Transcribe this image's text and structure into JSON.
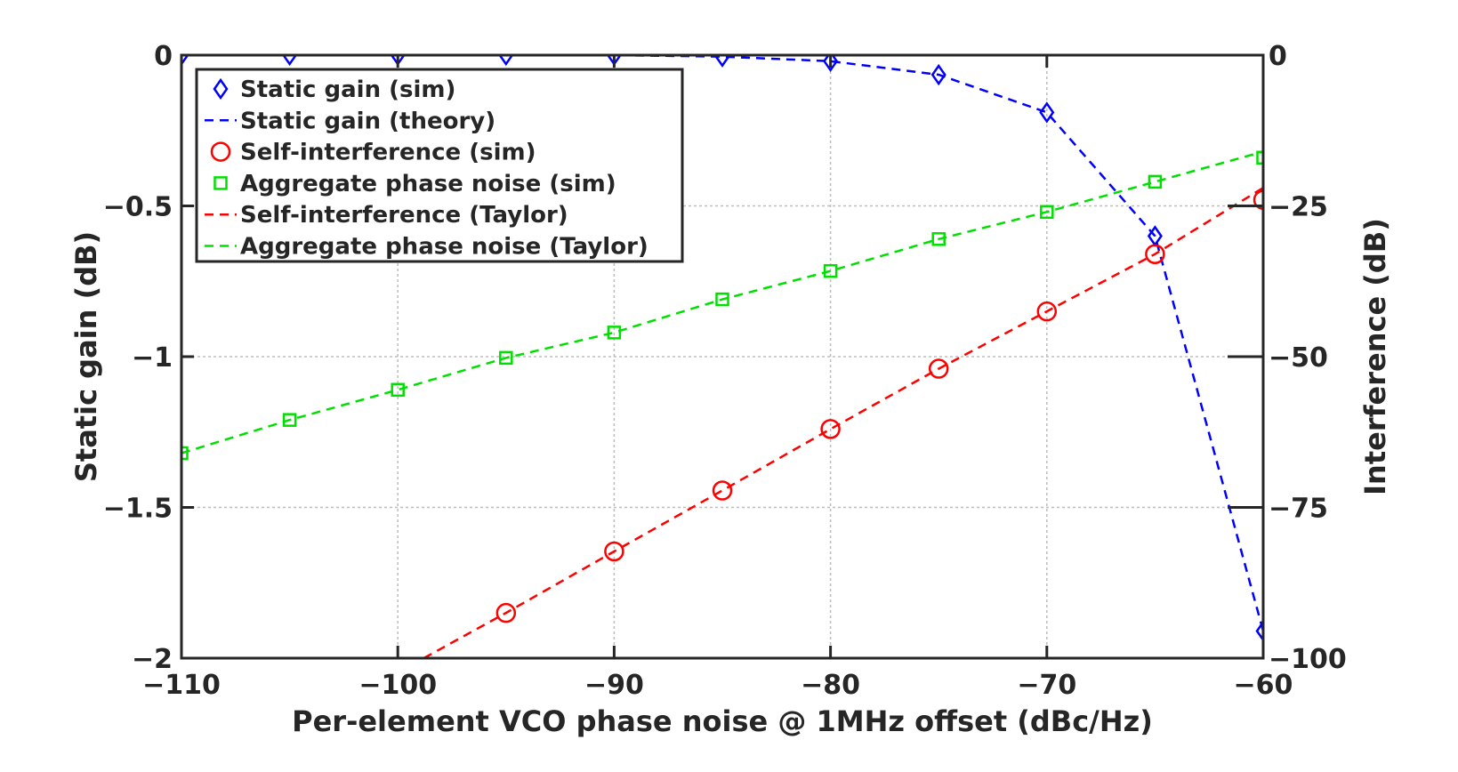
{
  "chart_data": {
    "type": "line",
    "title": "",
    "xlabel": "Per-element VCO phase noise @ 1MHz offset (dBc/Hz)",
    "ylabel_left": "Static gain (dB)",
    "ylabel_right": "Interference (dB)",
    "xlim": [
      -110,
      -60
    ],
    "ylim_left": [
      -2,
      0
    ],
    "ylim_right": [
      -100,
      0
    ],
    "xticks": [
      -110,
      -100,
      -90,
      -80,
      -70,
      -60
    ],
    "xtick_labels": [
      "−110",
      "−100",
      "−90",
      "−80",
      "−70",
      "−60"
    ],
    "yticks_left": [
      0,
      -0.5,
      -1,
      -1.5,
      -2
    ],
    "ytick_labels_left": [
      "0",
      "−0.5",
      "−1",
      "−1.5",
      "−2"
    ],
    "yticks_right": [
      0,
      -25,
      -50,
      -75,
      -100
    ],
    "ytick_labels_right": [
      "0",
      "−25",
      "−50",
      "−75",
      "−100"
    ],
    "grid": true,
    "legend_position": "top-left",
    "series": [
      {
        "name": "Static gain (sim)",
        "axis": "left",
        "style": "marker",
        "marker": "diamond",
        "color": "#0000ff",
        "x": [
          -110,
          -105,
          -100,
          -95,
          -90,
          -85,
          -80,
          -75,
          -70,
          -65,
          -60
        ],
        "y": [
          0,
          0,
          0,
          0,
          0,
          -0.005,
          -0.02,
          -0.065,
          -0.19,
          -0.6,
          -1.91
        ]
      },
      {
        "name": "Static gain (theory)",
        "axis": "left",
        "style": "dashed",
        "color": "#0000ff",
        "x": [
          -110,
          -105,
          -100,
          -95,
          -90,
          -85,
          -80,
          -75,
          -70,
          -65,
          -60
        ],
        "y": [
          0,
          0,
          0,
          0,
          0,
          -0.005,
          -0.02,
          -0.065,
          -0.19,
          -0.6,
          -1.91
        ]
      },
      {
        "name": "Self-interference (sim)",
        "axis": "right",
        "style": "marker",
        "marker": "circle",
        "color": "#ff0000",
        "x": [
          -95,
          -90,
          -85,
          -80,
          -75,
          -70,
          -65,
          -60
        ],
        "y": [
          -92.5,
          -82.3,
          -72.2,
          -62,
          -52,
          -42.5,
          -33,
          -24
        ]
      },
      {
        "name": "Aggregate phase noise (sim)",
        "axis": "right",
        "style": "marker",
        "marker": "square",
        "color": "#00e000",
        "x": [
          -110,
          -105,
          -100,
          -95,
          -90,
          -85,
          -80,
          -75,
          -70,
          -65,
          -60
        ],
        "y": [
          -66,
          -60.5,
          -55.5,
          -50.2,
          -46,
          -40.5,
          -35.8,
          -30.5,
          -26,
          -21,
          -17
        ]
      },
      {
        "name": "Self-interference (Taylor)",
        "axis": "right",
        "style": "dashed",
        "color": "#ff0000",
        "x": [
          -98.8,
          -95,
          -90,
          -85,
          -80,
          -75,
          -70,
          -65,
          -60
        ],
        "y": [
          -100,
          -92.5,
          -82.3,
          -72.2,
          -62,
          -52,
          -42.5,
          -33,
          -22
        ]
      },
      {
        "name": "Aggregate phase noise (Taylor)",
        "axis": "right",
        "style": "dashed",
        "color": "#00e000",
        "x": [
          -110,
          -105,
          -100,
          -95,
          -90,
          -85,
          -80,
          -75,
          -70,
          -65,
          -60
        ],
        "y": [
          -66,
          -60.5,
          -55.5,
          -50.2,
          -46,
          -40.5,
          -35.8,
          -30.5,
          -26,
          -21,
          -16
        ]
      }
    ],
    "legend": [
      "Static gain (sim)",
      "Static gain (theory)",
      "Self-interference (sim)",
      "Aggregate phase noise (sim)",
      "Self-interference (Taylor)",
      "Aggregate phase noise (Taylor)"
    ]
  }
}
